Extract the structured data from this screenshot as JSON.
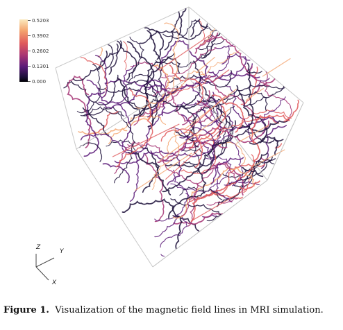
{
  "colorbar": {
    "ticks": [
      "0.5203",
      "0.3902",
      "0.2602",
      "0.1301",
      "0.000"
    ],
    "colors": [
      "#fbe9bd",
      "#f4a46e",
      "#e05a5c",
      "#a63474",
      "#5a1a78",
      "#1c0f3a",
      "#000004"
    ]
  },
  "axes": {
    "z": "Z",
    "y": "Y",
    "x": "X"
  },
  "caption": {
    "label": "Figure 1.",
    "text": "Visualization of the magnetic field lines in MRI simulation."
  }
}
